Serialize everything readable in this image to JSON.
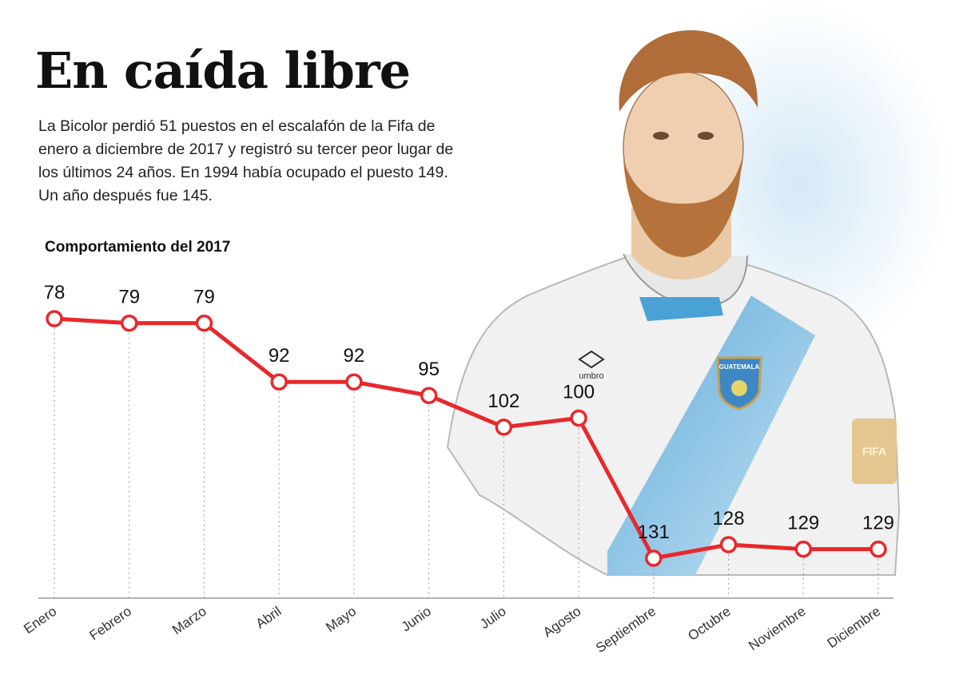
{
  "header": {
    "title": "En caída libre",
    "subtitle": "La Bicolor perdió 51 puestos en el escalafón de la Fifa de enero a diciembre de 2017 y registró su tercer peor lugar de los últimos 24 años. En 1994 había ocupado el puesto 149. Un año después fue 145."
  },
  "illustration": {
    "badge_text": "GUATEMALA",
    "brand_text": "umbro",
    "sleeve_text": "FIFA"
  },
  "chart_data": {
    "type": "line",
    "title": "Comportamiento del 2017",
    "categories": [
      "Enero",
      "Febrero",
      "Marzo",
      "Abril",
      "Mayo",
      "Junio",
      "Julio",
      "Agosto",
      "Septiembre",
      "Octubre",
      "Noviembre",
      "Diciembre"
    ],
    "values": [
      78,
      79,
      79,
      92,
      92,
      95,
      102,
      100,
      131,
      128,
      129,
      129
    ],
    "ylim": [
      78,
      131
    ],
    "inverted_y": true,
    "xlabel": "",
    "ylabel": "",
    "grid": "vertical dotted",
    "line_color": "#e8282c",
    "marker_fill": "#ffffff"
  }
}
